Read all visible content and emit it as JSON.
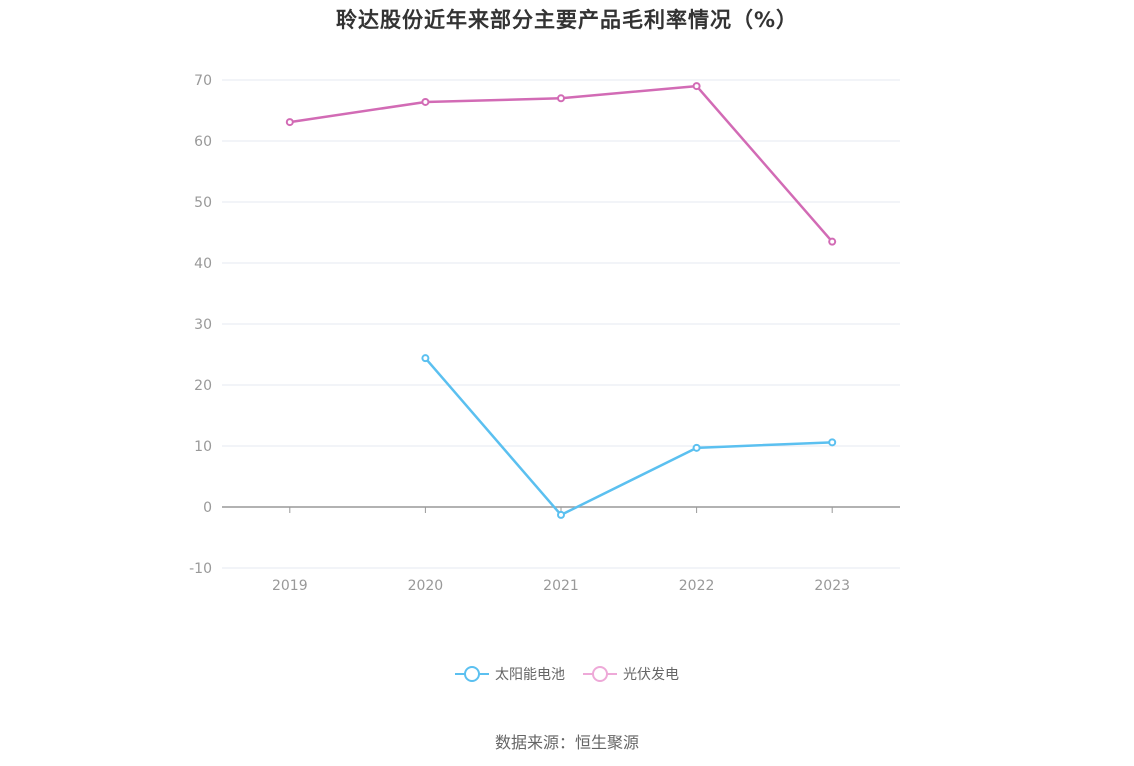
{
  "chart_data": {
    "type": "line",
    "title": "聆达股份近年来部分主要产品毛利率情况（%）",
    "categories": [
      "2019",
      "2020",
      "2021",
      "2022",
      "2023"
    ],
    "ylim": [
      -10,
      70
    ],
    "yticks": [
      70,
      60,
      50,
      40,
      30,
      20,
      10,
      0,
      -10
    ],
    "grid": true,
    "legend_position": "bottom",
    "series": [
      {
        "name": "太阳能电池",
        "color": "#5bc0f0",
        "values": [
          null,
          24.4,
          -1.3,
          9.7,
          10.6
        ]
      },
      {
        "name": "光伏发电",
        "color": "#d26bb5",
        "legend_color": "#eea9d8",
        "values": [
          63.1,
          66.4,
          67.0,
          69.0,
          43.5
        ]
      }
    ]
  },
  "source": "数据来源：恒生聚源"
}
